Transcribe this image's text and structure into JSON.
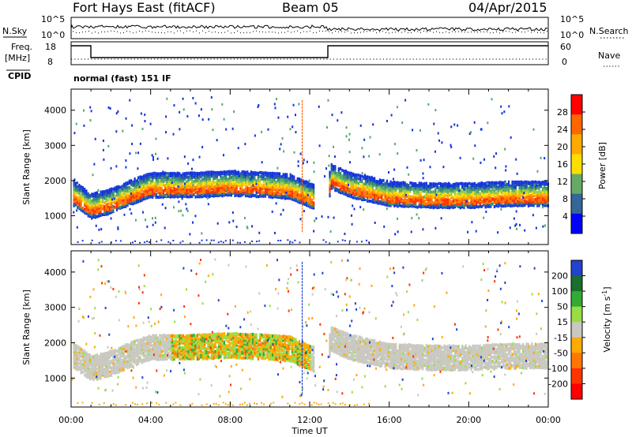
{
  "header": {
    "title": "Fort Hays East (fitACF)",
    "beam": "Beam 05",
    "date": "04/Apr/2015"
  },
  "top_panels": {
    "noise_left_label": "N.Sky",
    "noise_right_label": "N.Search",
    "noise_ticks_left": [
      "10^5",
      "10^0"
    ],
    "noise_ticks_right": [
      "10^5",
      "10^0"
    ],
    "freq_label_1": "Freq.",
    "freq_label_2": "[MHz]",
    "freq_ticks": [
      "18",
      "8"
    ],
    "nave_label": "Nave",
    "nave_ticks": [
      "60",
      "0"
    ],
    "cpid_label": "CPID",
    "cpid_value": "normal (fast) 151 IF"
  },
  "chart_data": [
    {
      "type": "heatmap",
      "name": "power",
      "ylabel": "Slant Range [km]",
      "xlabel": "",
      "x_ticks": [
        "00:00",
        "04:00",
        "08:00",
        "12:00",
        "16:00",
        "20:00",
        "00:00"
      ],
      "y_ticks": [
        "1000",
        "2000",
        "3000",
        "4000"
      ],
      "xlim_hours": [
        0,
        24
      ],
      "ylim_km": [
        180,
        4600
      ],
      "colorbar": {
        "label": "Power [dB]",
        "ticks": [
          "28",
          "24",
          "20",
          "16",
          "12",
          "8",
          "4"
        ],
        "colors": [
          "#ff0000",
          "#ff6600",
          "#ffaa00",
          "#ffdd00",
          "#66aa66",
          "#336699",
          "#0000ff"
        ]
      },
      "echo_band": {
        "x_hours": [
          0,
          1,
          2,
          3,
          4,
          6,
          8,
          10,
          11,
          12,
          12.9,
          13,
          14,
          16,
          18,
          20,
          22,
          24
        ],
        "center_km": [
          1550,
          1150,
          1300,
          1550,
          1750,
          1750,
          1800,
          1750,
          1700,
          1450,
          1280,
          2000,
          1750,
          1500,
          1450,
          1450,
          1500,
          1500
        ]
      }
    },
    {
      "type": "heatmap",
      "name": "velocity",
      "ylabel": "Slant Range [km]",
      "xlabel": "Time UT",
      "x_ticks": [
        "00:00",
        "04:00",
        "08:00",
        "12:00",
        "16:00",
        "20:00",
        "00:00"
      ],
      "y_ticks": [
        "1000",
        "2000",
        "3000",
        "4000"
      ],
      "xlim_hours": [
        0,
        24
      ],
      "ylim_km": [
        180,
        4600
      ],
      "colorbar": {
        "label": "Velocity [m s^-1]",
        "ticks": [
          "200",
          "100",
          "50",
          "15",
          "-15",
          "-50",
          "-100",
          "-200"
        ],
        "colors": [
          "#2244cc",
          "#1a6e2e",
          "#33aa33",
          "#99dd44",
          "#c8c8c0",
          "#ffaa00",
          "#ff7700",
          "#ff3300",
          "#ff0000"
        ]
      }
    }
  ]
}
